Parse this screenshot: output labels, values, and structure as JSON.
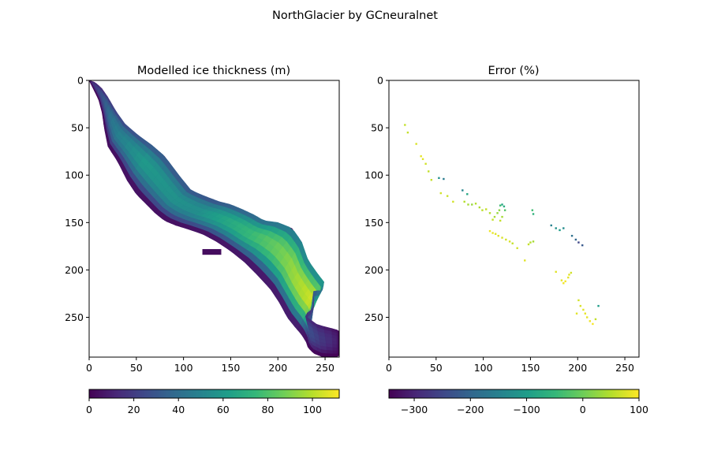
{
  "figure": {
    "suptitle": "NorthGlacier by GCneuralnet"
  },
  "chart_data": [
    {
      "type": "heatmap",
      "title": "Modelled ice thickness (m)",
      "xlabel": "",
      "ylabel": "",
      "xlim": [
        0,
        265
      ],
      "ylim": [
        292,
        0
      ],
      "xticks": [
        "0",
        "50",
        "100",
        "150",
        "200",
        "250"
      ],
      "yticks": [
        "0",
        "50",
        "100",
        "150",
        "200",
        "250"
      ],
      "colormap": "viridis",
      "colorbar": {
        "range": [
          0,
          112
        ],
        "ticks": [
          "0",
          "20",
          "40",
          "60",
          "80",
          "100"
        ],
        "orientation": "horizontal",
        "location": "bottom"
      },
      "glacier_outline": {
        "upper_edge": [
          [
            0,
            0
          ],
          [
            6,
            2
          ],
          [
            13,
            8
          ],
          [
            20,
            18
          ],
          [
            28,
            32
          ],
          [
            38,
            46
          ],
          [
            52,
            58
          ],
          [
            66,
            68
          ],
          [
            80,
            80
          ],
          [
            95,
            100
          ],
          [
            108,
            116
          ],
          [
            122,
            122
          ],
          [
            138,
            128
          ],
          [
            150,
            131
          ],
          [
            162,
            136
          ],
          [
            175,
            142
          ],
          [
            185,
            148
          ],
          [
            200,
            150
          ],
          [
            215,
            156
          ],
          [
            225,
            170
          ],
          [
            232,
            190
          ],
          [
            242,
            204
          ],
          [
            249,
            213
          ],
          [
            247,
            222
          ],
          [
            238,
            222
          ],
          [
            238,
            240
          ],
          [
            228,
            248
          ],
          [
            242,
            258
          ],
          [
            262,
            263
          ],
          [
            265,
            265
          ]
        ],
        "lower_edge": [
          [
            0,
            0
          ],
          [
            4,
            8
          ],
          [
            10,
            20
          ],
          [
            14,
            35
          ],
          [
            16,
            50
          ],
          [
            20,
            70
          ],
          [
            30,
            85
          ],
          [
            40,
            105
          ],
          [
            50,
            120
          ],
          [
            60,
            130
          ],
          [
            70,
            140
          ],
          [
            80,
            148
          ],
          [
            92,
            153
          ],
          [
            105,
            157
          ],
          [
            120,
            162
          ],
          [
            135,
            170
          ],
          [
            150,
            180
          ],
          [
            165,
            192
          ],
          [
            178,
            205
          ],
          [
            192,
            220
          ],
          [
            202,
            235
          ],
          [
            210,
            250
          ],
          [
            218,
            260
          ],
          [
            225,
            268
          ],
          [
            230,
            276
          ],
          [
            232,
            282
          ],
          [
            238,
            288
          ],
          [
            248,
            292
          ],
          [
            262,
            292
          ],
          [
            265,
            290
          ]
        ],
        "inlet": {
          "x_range": [
            120,
            140
          ],
          "y_range": [
            178,
            184
          ]
        }
      },
      "thickness_profile": [
        {
          "along": 0.0,
          "max": 10
        },
        {
          "along": 0.15,
          "max": 45
        },
        {
          "along": 0.25,
          "max": 60
        },
        {
          "along": 0.4,
          "max": 55
        },
        {
          "along": 0.55,
          "max": 75
        },
        {
          "along": 0.68,
          "max": 95
        },
        {
          "along": 0.76,
          "max": 105
        },
        {
          "along": 0.85,
          "max": 40
        },
        {
          "along": 1.0,
          "max": 2
        }
      ]
    },
    {
      "type": "heatmap",
      "title": "Error (%)",
      "xlabel": "",
      "ylabel": "",
      "xlim": [
        0,
        265
      ],
      "ylim": [
        292,
        0
      ],
      "xticks": [
        "0",
        "50",
        "100",
        "150",
        "200",
        "250"
      ],
      "yticks": [
        "0",
        "50",
        "100",
        "150",
        "200",
        "250"
      ],
      "colormap": "viridis",
      "colorbar": {
        "range": [
          -345,
          100
        ],
        "ticks": [
          "−300",
          "−200",
          "−100",
          "0",
          "100"
        ],
        "orientation": "horizontal",
        "location": "bottom"
      },
      "points": [
        [
          17,
          47,
          60
        ],
        [
          20,
          55,
          60
        ],
        [
          29,
          67,
          75
        ],
        [
          34,
          80,
          85
        ],
        [
          36,
          83,
          80
        ],
        [
          39,
          88,
          70
        ],
        [
          42,
          96,
          60
        ],
        [
          45,
          105,
          60
        ],
        [
          53,
          103,
          -120
        ],
        [
          58,
          104,
          -160
        ],
        [
          55,
          119,
          70
        ],
        [
          62,
          122,
          65
        ],
        [
          68,
          128,
          70
        ],
        [
          78,
          116,
          -140
        ],
        [
          83,
          120,
          -80
        ],
        [
          80,
          128,
          50
        ],
        [
          84,
          131,
          40
        ],
        [
          88,
          131,
          30
        ],
        [
          92,
          130,
          50
        ],
        [
          96,
          134,
          45
        ],
        [
          99,
          137,
          55
        ],
        [
          103,
          136,
          60
        ],
        [
          107,
          140,
          50
        ],
        [
          110,
          147,
          60
        ],
        [
          112,
          144,
          40
        ],
        [
          115,
          140,
          30
        ],
        [
          117,
          137,
          20
        ],
        [
          118,
          132,
          -40
        ],
        [
          120,
          131,
          -80
        ],
        [
          122,
          133,
          -70
        ],
        [
          123,
          137,
          -20
        ],
        [
          120,
          144,
          40
        ],
        [
          118,
          148,
          60
        ],
        [
          107,
          159,
          90
        ],
        [
          110,
          161,
          85
        ],
        [
          113,
          162,
          80
        ],
        [
          116,
          164,
          80
        ],
        [
          120,
          166,
          75
        ],
        [
          124,
          168,
          70
        ],
        [
          128,
          170,
          75
        ],
        [
          131,
          172,
          60
        ],
        [
          150,
          171,
          50
        ],
        [
          153,
          170,
          40
        ],
        [
          148,
          173,
          60
        ],
        [
          136,
          177,
          70
        ],
        [
          144,
          190,
          80
        ],
        [
          152,
          137,
          -40
        ],
        [
          153,
          141,
          -60
        ],
        [
          172,
          153,
          -150
        ],
        [
          177,
          156,
          -120
        ],
        [
          181,
          158,
          -100
        ],
        [
          185,
          156,
          -130
        ],
        [
          194,
          164,
          -180
        ],
        [
          198,
          168,
          -200
        ],
        [
          201,
          171,
          -250
        ],
        [
          205,
          174,
          -220
        ],
        [
          177,
          202,
          80
        ],
        [
          183,
          211,
          85
        ],
        [
          185,
          214,
          90
        ],
        [
          187,
          212,
          95
        ],
        [
          190,
          208,
          85
        ],
        [
          191,
          205,
          80
        ],
        [
          193,
          203,
          70
        ],
        [
          201,
          232,
          70
        ],
        [
          203,
          238,
          75
        ],
        [
          206,
          242,
          80
        ],
        [
          210,
          250,
          85
        ],
        [
          213,
          254,
          90
        ],
        [
          216,
          257,
          95
        ],
        [
          219,
          252,
          60
        ],
        [
          222,
          238,
          -100
        ],
        [
          208,
          246,
          85
        ],
        [
          199,
          246,
          80
        ]
      ]
    }
  ]
}
